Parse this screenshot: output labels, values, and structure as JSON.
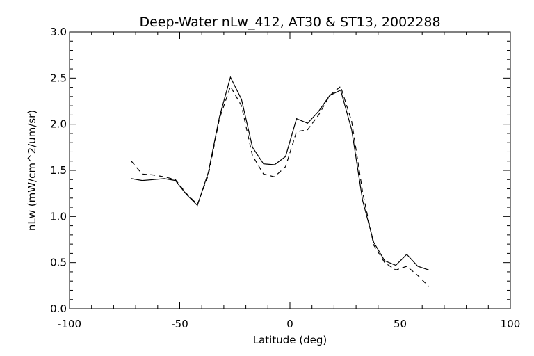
{
  "chart_data": {
    "type": "line",
    "title": "Deep-Water nLw_412, AT30 & ST13, 2002288",
    "xlabel": "Latitude (deg)",
    "ylabel": "nLw (mW/cm^2/um/sr)",
    "xlim": [
      -100,
      100
    ],
    "ylim": [
      0.0,
      3.0
    ],
    "xticks": [
      "-100",
      "-50",
      "0",
      "50",
      "100"
    ],
    "yticks": [
      "0.0",
      "0.5",
      "1.0",
      "1.5",
      "2.0",
      "2.5",
      "3.0"
    ],
    "grid": false,
    "series": [
      {
        "style": "solid",
        "x": [
          -72,
          -67,
          -62,
          -57,
          -52,
          -47,
          -42,
          -37,
          -32,
          -27,
          -22,
          -17,
          -12,
          -7,
          -2,
          3,
          8,
          13,
          18,
          23,
          28,
          33,
          38,
          43,
          48,
          53,
          58,
          63
        ],
        "y": [
          1.41,
          1.39,
          1.4,
          1.41,
          1.39,
          1.24,
          1.12,
          1.48,
          2.08,
          2.51,
          2.27,
          1.75,
          1.57,
          1.56,
          1.65,
          2.06,
          2.01,
          2.14,
          2.31,
          2.37,
          1.94,
          1.17,
          0.72,
          0.52,
          0.47,
          0.59,
          0.46,
          0.42
        ]
      },
      {
        "style": "dashed",
        "x": [
          -72,
          -67,
          -62,
          -57,
          -52,
          -47,
          -42,
          -37,
          -32,
          -27,
          -22,
          -17,
          -12,
          -7,
          -2,
          3,
          8,
          13,
          18,
          23,
          28,
          33,
          38,
          43,
          48,
          53,
          58,
          63
        ],
        "y": [
          1.6,
          1.46,
          1.45,
          1.43,
          1.4,
          1.25,
          1.13,
          1.45,
          2.06,
          2.41,
          2.2,
          1.66,
          1.46,
          1.43,
          1.54,
          1.92,
          1.94,
          2.1,
          2.31,
          2.41,
          2.03,
          1.26,
          0.69,
          0.5,
          0.42,
          0.46,
          0.36,
          0.24
        ]
      }
    ]
  }
}
